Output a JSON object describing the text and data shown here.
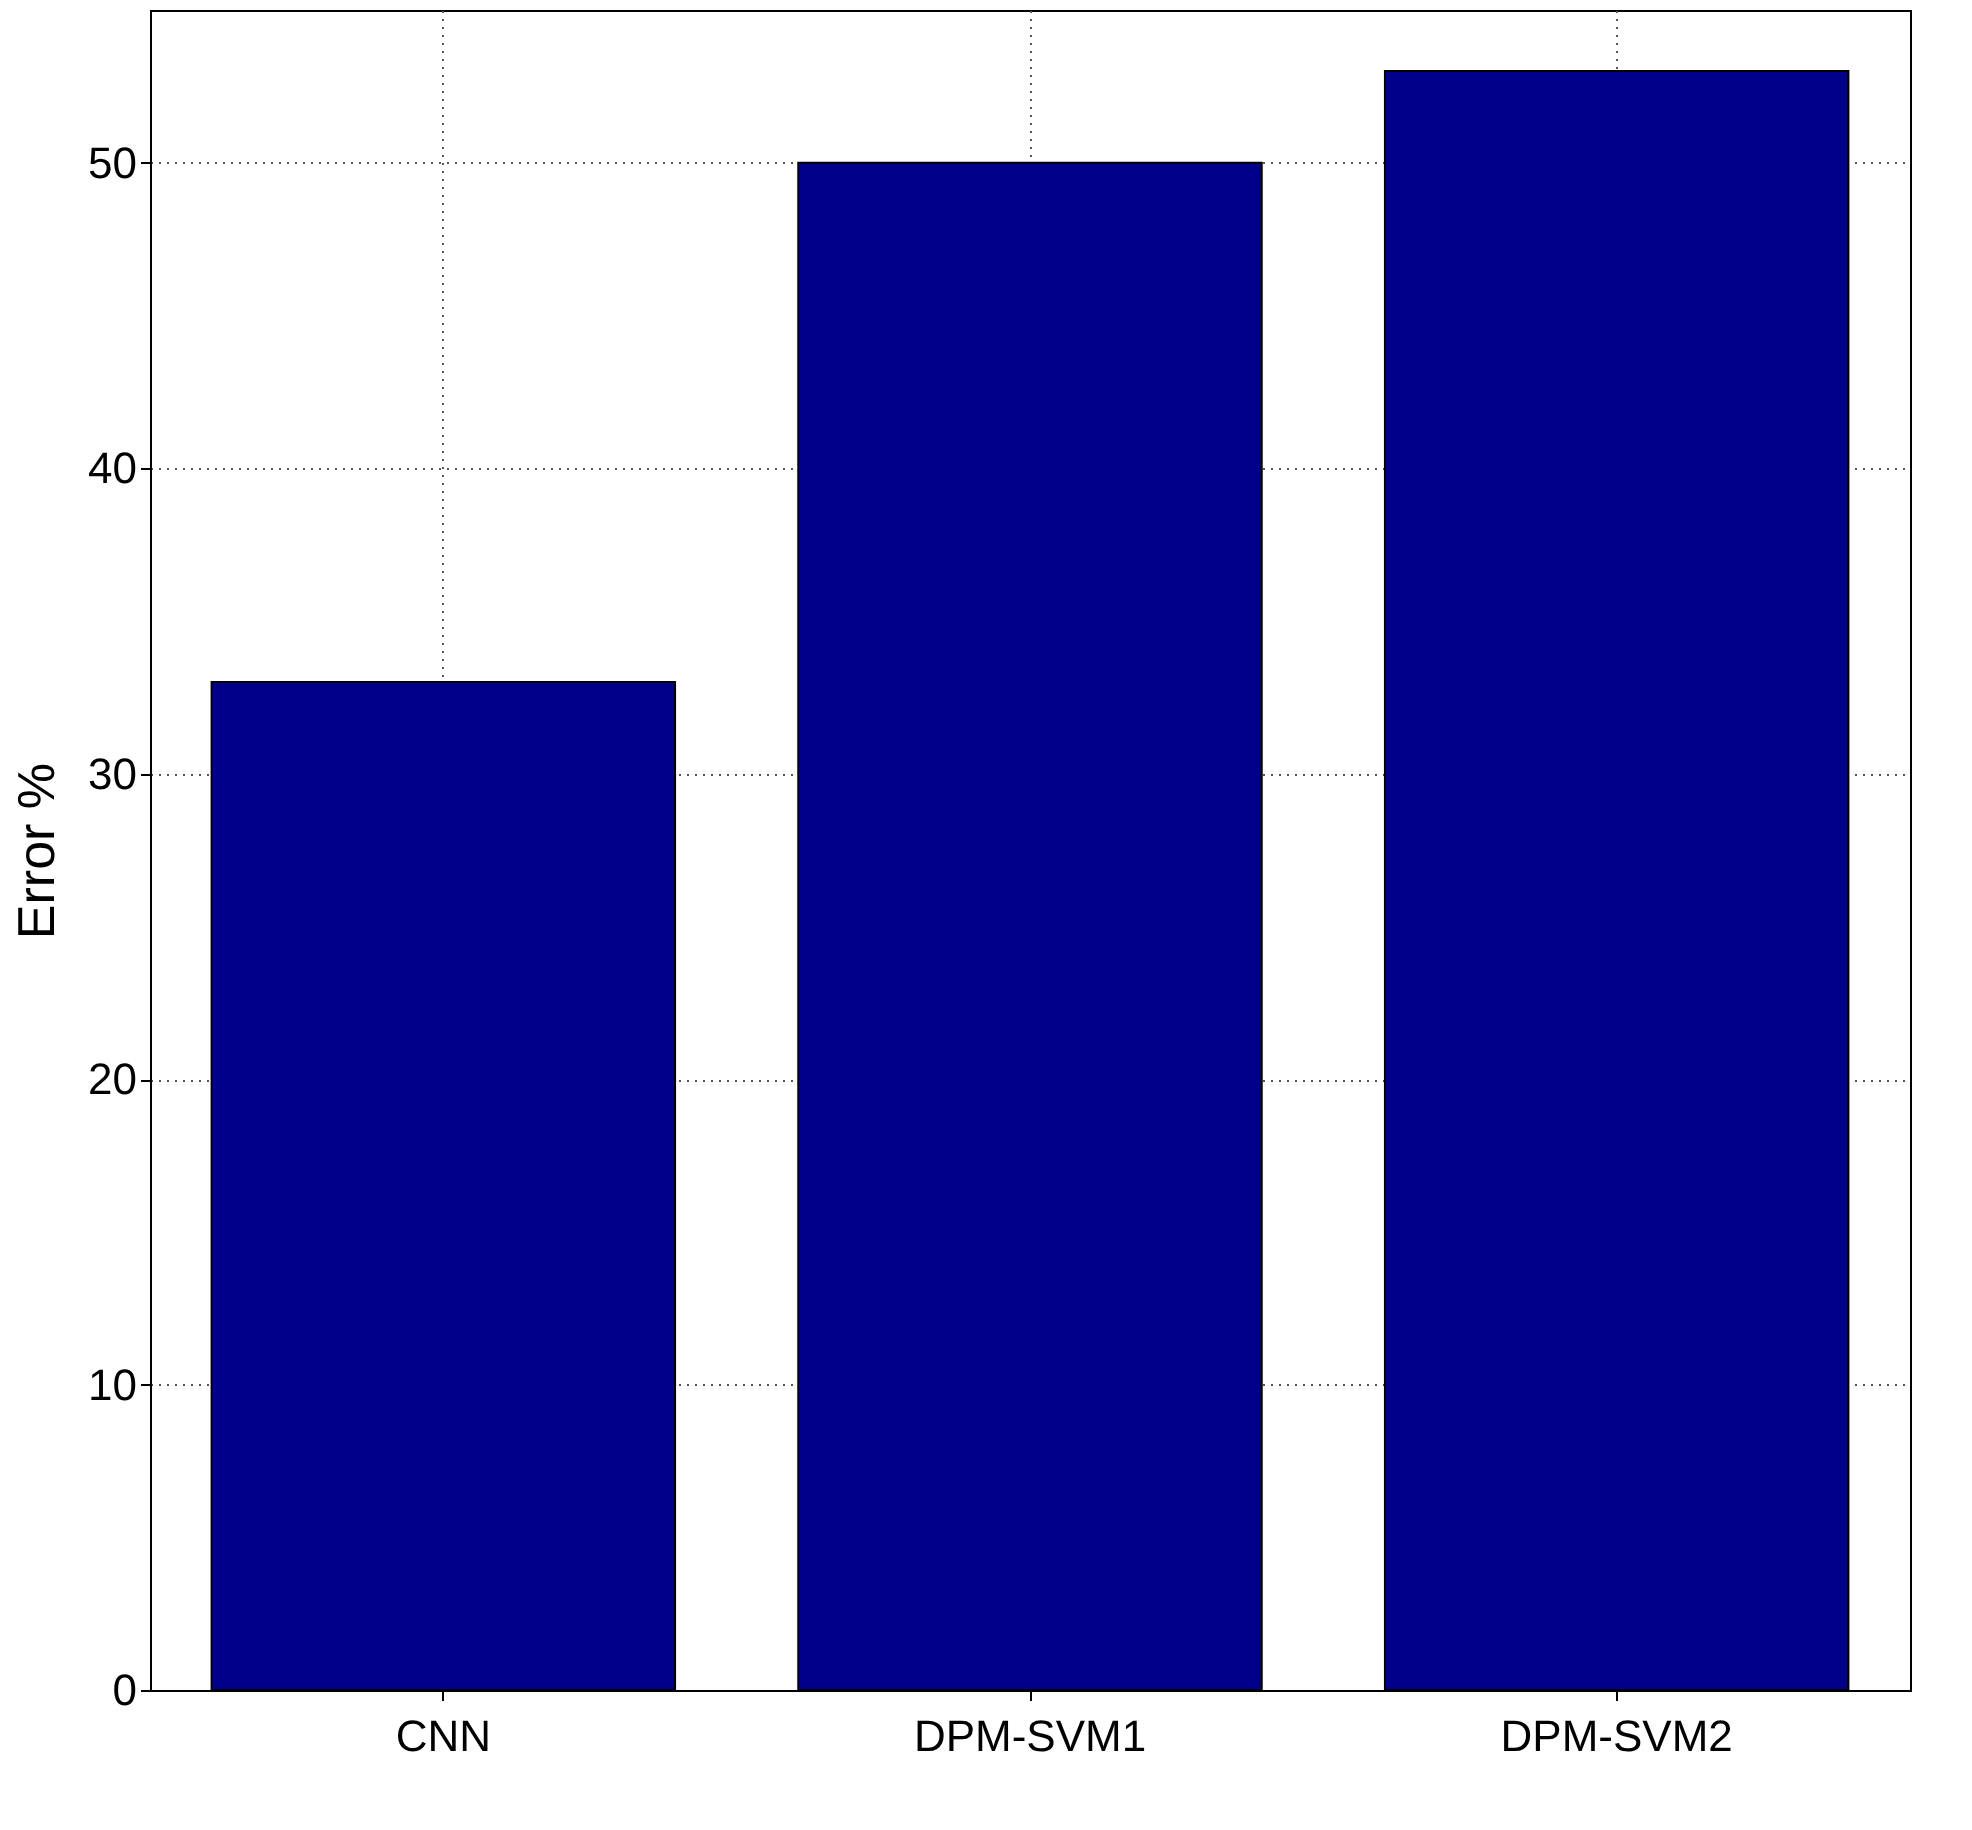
{
  "chart_data": {
    "type": "bar",
    "ylabel": "Error %",
    "categories": [
      "CNN",
      "DPM-SVM1",
      "DPM-SVM2"
    ],
    "values": [
      33,
      50,
      53
    ],
    "color": "#00008b",
    "ylim": [
      0,
      55
    ],
    "yticks": [
      0,
      10,
      20,
      30,
      40,
      50
    ],
    "grid": true
  }
}
